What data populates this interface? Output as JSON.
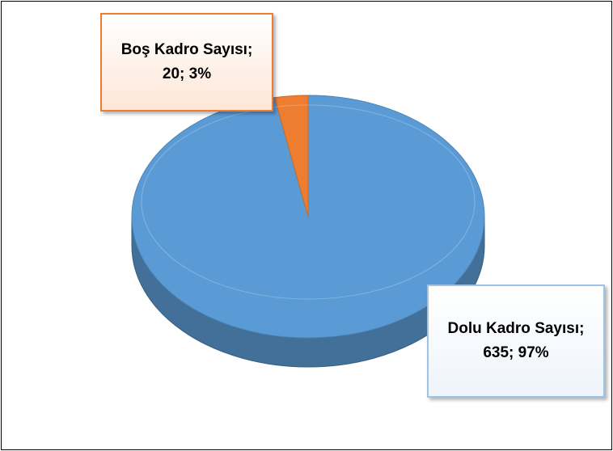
{
  "chart_data": {
    "type": "pie",
    "categories": [
      "Dolu Kadro Sayısı",
      "Boş Kadro Sayısı"
    ],
    "values": [
      635,
      20
    ],
    "value_labels": [
      "Dolu Kadro Sayısı; 635; 97%",
      "Boş Kadro Sayısı; 20; 3%"
    ],
    "colors": [
      "#5b9bd5",
      "#ed7d31"
    ]
  }
}
